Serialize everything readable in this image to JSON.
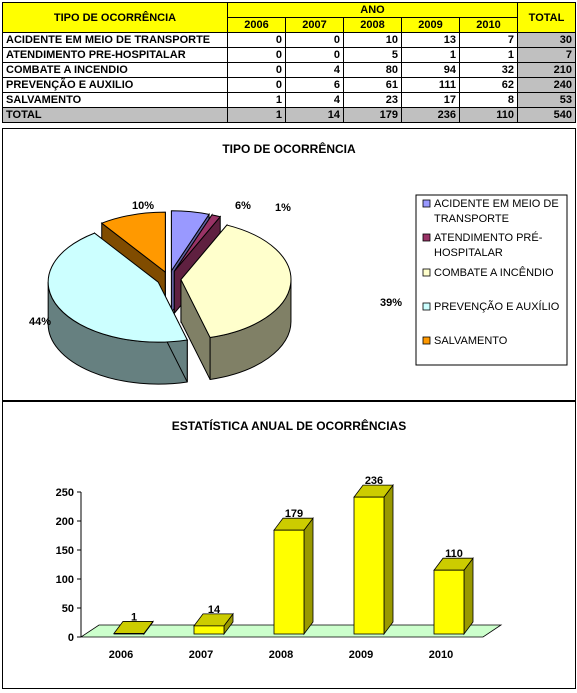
{
  "table": {
    "type_header": "TIPO DE OCORRÊNCIA",
    "year_group_header": "ANO",
    "total_header": "TOTAL",
    "years": [
      "2006",
      "2007",
      "2008",
      "2009",
      "2010"
    ],
    "rows": [
      {
        "label": "ACIDENTE EM MEIO DE TRANSPORTE",
        "values": [
          0,
          0,
          10,
          13,
          7
        ],
        "total": 30
      },
      {
        "label": "ATENDIMENTO PRE-HOSPITALAR",
        "values": [
          0,
          0,
          5,
          1,
          1
        ],
        "total": 7
      },
      {
        "label": "COMBATE A INCENDIO",
        "values": [
          0,
          4,
          80,
          94,
          32
        ],
        "total": 210
      },
      {
        "label": "PREVENÇÃO E AUXILIO",
        "values": [
          0,
          6,
          61,
          111,
          62
        ],
        "total": 240
      },
      {
        "label": "SALVAMENTO",
        "values": [
          1,
          4,
          23,
          17,
          8
        ],
        "total": 53
      }
    ],
    "total_row": {
      "label": "TOTAL",
      "values": [
        1,
        14,
        179,
        236,
        110
      ],
      "total": 540
    }
  },
  "chart_data": [
    {
      "type": "pie",
      "title": "TIPO DE OCORRÊNCIA",
      "legend_position": "right",
      "slices": [
        {
          "label": "ACIDENTE EM MEIO DE TRANSPORTE",
          "value": 30,
          "percent_label": "6%",
          "color": "#9999ff",
          "side": "#5f5fa0"
        },
        {
          "label": "ATENDIMENTO PRÉ-HOSPITALAR",
          "value": 7,
          "percent_label": "1%",
          "color": "#993366",
          "side": "#5f2040"
        },
        {
          "label": "COMBATE A INCÊNDIO",
          "value": 210,
          "percent_label": "39%",
          "color": "#ffffcc",
          "side": "#808066"
        },
        {
          "label": "PREVENÇÃO E AUXÍLIO",
          "value": 240,
          "percent_label": "44%",
          "color": "#ccffff",
          "side": "#668080"
        },
        {
          "label": "SALVAMENTO",
          "value": 53,
          "percent_label": "10%",
          "color": "#ff9900",
          "side": "#804c00"
        }
      ]
    },
    {
      "type": "bar",
      "title": "ESTATÍSTICA ANUAL DE OCORRÊNCIAS",
      "categories": [
        "2006",
        "2007",
        "2008",
        "2009",
        "2010"
      ],
      "values": [
        1,
        14,
        179,
        236,
        110
      ],
      "ylim": [
        0,
        250
      ],
      "yticks": [
        0,
        50,
        100,
        150,
        200,
        250
      ],
      "bar_color": "#ffff00",
      "floor_color": "#ccffcc",
      "grid": false
    }
  ]
}
